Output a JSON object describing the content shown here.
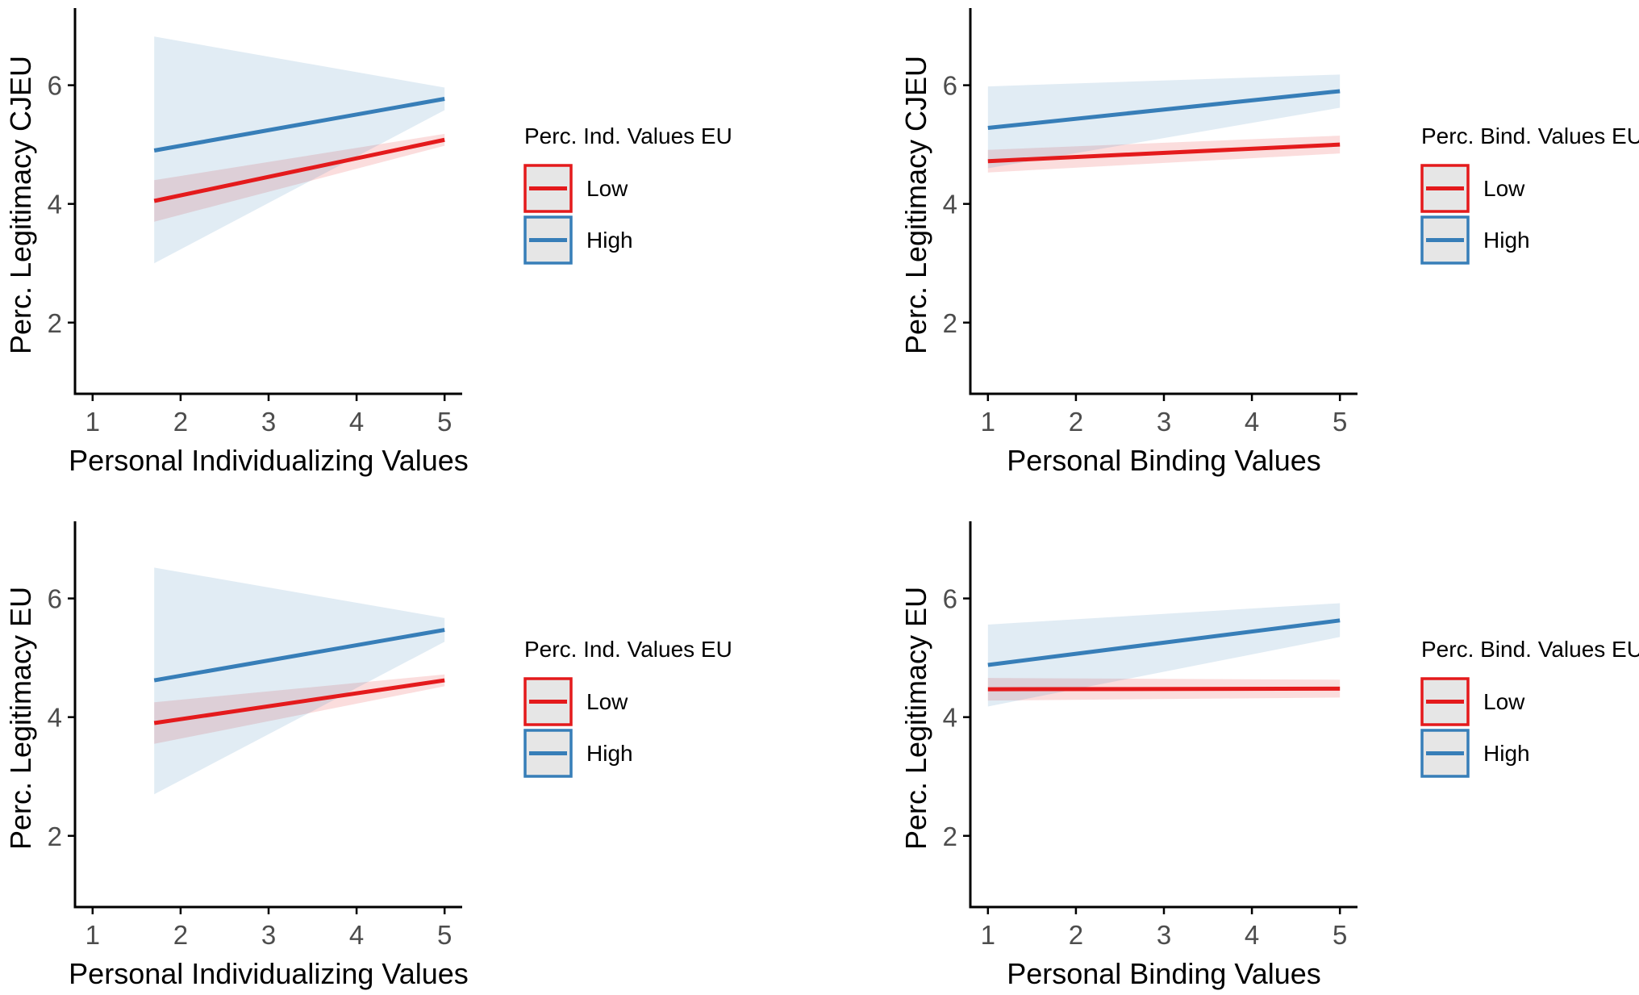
{
  "colors": {
    "low": "#e41a1c",
    "high": "#377eb8",
    "axis": "#000000",
    "tick_text": "#4d4d4d",
    "key_fill": "#e6e6e6"
  },
  "chart_data": [
    {
      "type": "line",
      "panel": "top-left",
      "xlabel": "Personal Individualizing Values",
      "ylabel": "Perc. Legitimacy CJEU",
      "xlim": [
        0.8,
        5.2
      ],
      "ylim": [
        0.8,
        7.3
      ],
      "xticks": [
        1,
        2,
        3,
        4,
        5
      ],
      "yticks": [
        2,
        4,
        6
      ],
      "legend": {
        "title": "Perc. Ind. Values EU",
        "position": "right",
        "entries": [
          "Low",
          "High"
        ]
      },
      "series": [
        {
          "name": "Low",
          "color_key": "low",
          "x": [
            1.7,
            5.0
          ],
          "y": [
            4.05,
            5.08
          ],
          "ci_lower": [
            3.7,
            4.98
          ],
          "ci_upper": [
            4.4,
            5.18
          ]
        },
        {
          "name": "High",
          "color_key": "high",
          "x": [
            1.7,
            5.0
          ],
          "y": [
            4.9,
            5.77
          ],
          "ci_lower": [
            3.0,
            5.58
          ],
          "ci_upper": [
            6.82,
            5.96
          ]
        }
      ]
    },
    {
      "type": "line",
      "panel": "top-right",
      "xlabel": "Personal Binding Values",
      "ylabel": "Perc. Legitimacy CJEU",
      "xlim": [
        0.8,
        5.2
      ],
      "ylim": [
        0.8,
        7.3
      ],
      "xticks": [
        1,
        2,
        3,
        4,
        5
      ],
      "yticks": [
        2,
        4,
        6
      ],
      "legend": {
        "title": "Perc. Bind. Values EU",
        "position": "right",
        "entries": [
          "Low",
          "High"
        ]
      },
      "series": [
        {
          "name": "Low",
          "color_key": "low",
          "x": [
            1.0,
            5.0
          ],
          "y": [
            4.72,
            5.0
          ],
          "ci_lower": [
            4.53,
            4.85
          ],
          "ci_upper": [
            4.91,
            5.15
          ]
        },
        {
          "name": "High",
          "color_key": "high",
          "x": [
            1.0,
            5.0
          ],
          "y": [
            5.28,
            5.9
          ],
          "ci_lower": [
            4.6,
            5.62
          ],
          "ci_upper": [
            5.98,
            6.18
          ]
        }
      ]
    },
    {
      "type": "line",
      "panel": "bottom-left",
      "xlabel": "Personal Individualizing Values",
      "ylabel": "Perc. Legitimacy EU",
      "xlim": [
        0.8,
        5.2
      ],
      "ylim": [
        0.8,
        7.3
      ],
      "xticks": [
        1,
        2,
        3,
        4,
        5
      ],
      "yticks": [
        2,
        4,
        6
      ],
      "legend": {
        "title": "Perc. Ind. Values EU",
        "position": "right",
        "entries": [
          "Low",
          "High"
        ]
      },
      "series": [
        {
          "name": "Low",
          "color_key": "low",
          "x": [
            1.7,
            5.0
          ],
          "y": [
            3.9,
            4.62
          ],
          "ci_lower": [
            3.55,
            4.52
          ],
          "ci_upper": [
            4.25,
            4.72
          ]
        },
        {
          "name": "High",
          "color_key": "high",
          "x": [
            1.7,
            5.0
          ],
          "y": [
            4.62,
            5.47
          ],
          "ci_lower": [
            2.7,
            5.27
          ],
          "ci_upper": [
            6.52,
            5.67
          ]
        }
      ]
    },
    {
      "type": "line",
      "panel": "bottom-right",
      "xlabel": "Personal Binding Values",
      "ylabel": "Perc. Legitimacy EU",
      "xlim": [
        0.8,
        5.2
      ],
      "ylim": [
        0.8,
        7.3
      ],
      "xticks": [
        1,
        2,
        3,
        4,
        5
      ],
      "yticks": [
        2,
        4,
        6
      ],
      "legend": {
        "title": "Perc. Bind. Values EU",
        "position": "right",
        "entries": [
          "Low",
          "High"
        ]
      },
      "series": [
        {
          "name": "Low",
          "color_key": "low",
          "x": [
            1.0,
            5.0
          ],
          "y": [
            4.47,
            4.48
          ],
          "ci_lower": [
            4.28,
            4.33
          ],
          "ci_upper": [
            4.66,
            4.63
          ]
        },
        {
          "name": "High",
          "color_key": "high",
          "x": [
            1.0,
            5.0
          ],
          "y": [
            4.88,
            5.63
          ],
          "ci_lower": [
            4.18,
            5.35
          ],
          "ci_upper": [
            5.56,
            5.92
          ]
        }
      ]
    }
  ]
}
